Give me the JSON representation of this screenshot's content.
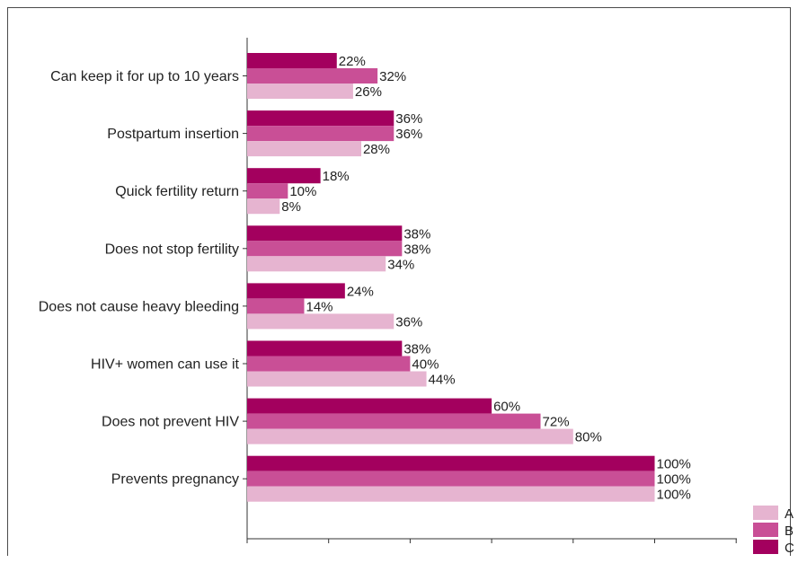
{
  "chart_data": {
    "type": "bar",
    "orientation": "horizontal",
    "categories": [
      "Can keep it for up to 10 years",
      "Postpartum insertion",
      "Quick fertility return",
      "Does not stop fertility",
      "Does not cause heavy bleeding",
      "HIV+ women can use it",
      "Does not prevent HIV",
      "Prevents pregnancy"
    ],
    "series": [
      {
        "name": "C",
        "color": "#a3005e",
        "values": [
          22,
          36,
          18,
          38,
          24,
          38,
          60,
          100
        ]
      },
      {
        "name": "B",
        "color": "#c94f96",
        "values": [
          32,
          36,
          10,
          38,
          14,
          40,
          72,
          100
        ]
      },
      {
        "name": "A",
        "color": "#e6b4d0",
        "values": [
          26,
          28,
          8,
          34,
          36,
          44,
          80,
          100
        ]
      }
    ],
    "value_suffix": "%",
    "xlim": [
      0,
      120
    ],
    "x_ticks": [
      0,
      20,
      40,
      60,
      80,
      100,
      120
    ],
    "grid": false,
    "legend": {
      "placement": "bottom-right",
      "order": [
        "A",
        "B",
        "C"
      ]
    }
  }
}
